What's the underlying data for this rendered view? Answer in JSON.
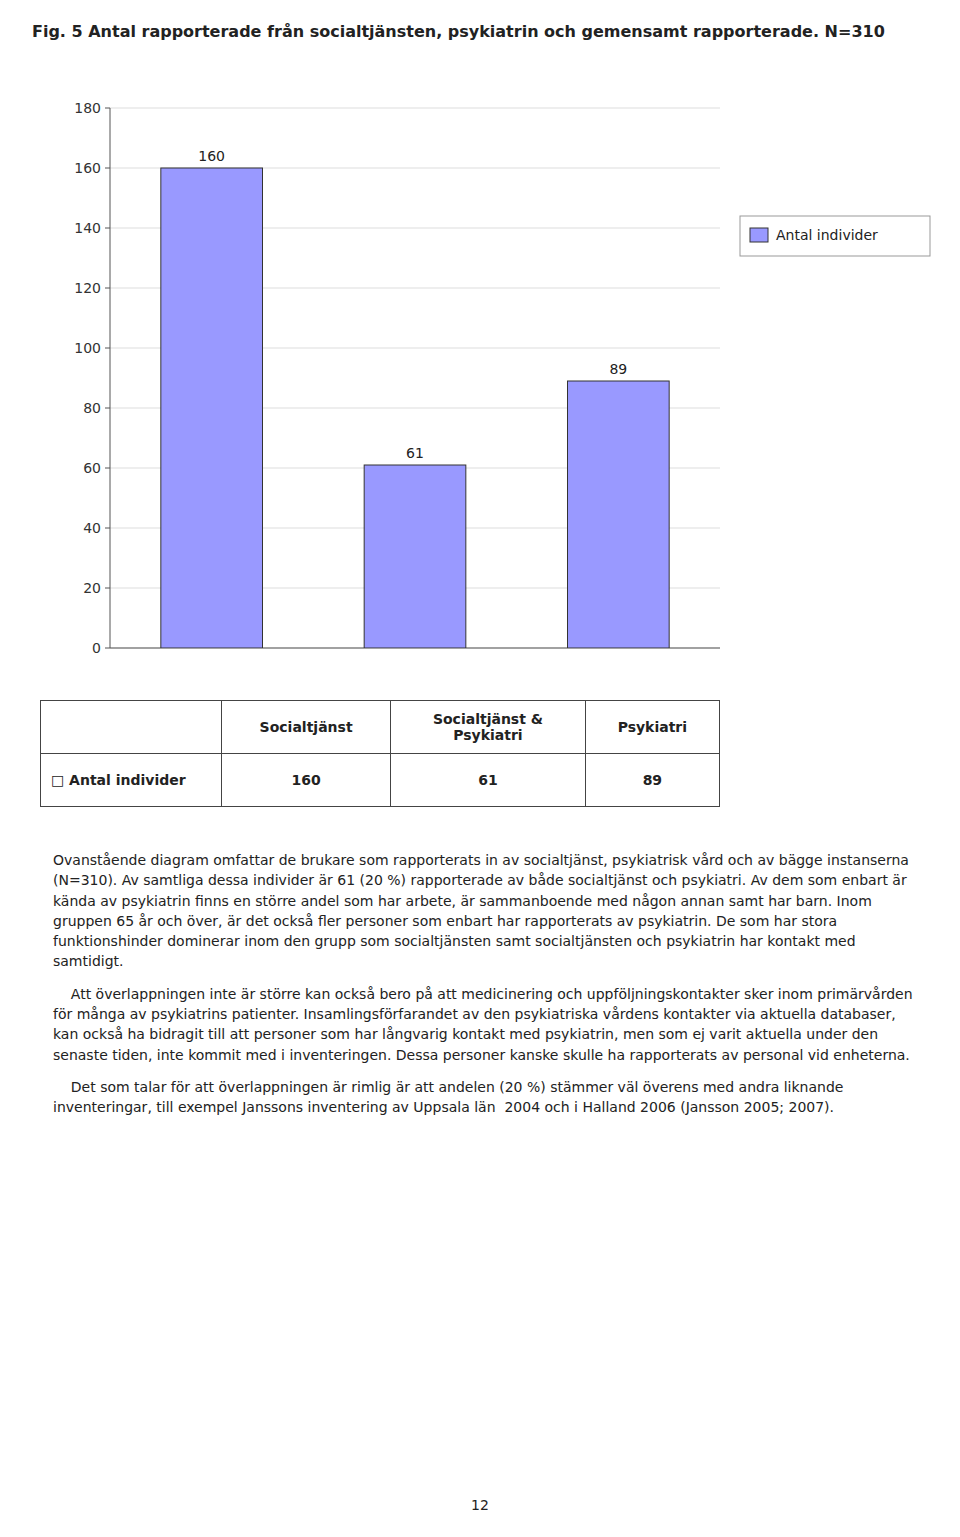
{
  "chart_data": {
    "type": "bar",
    "title": "Fig. 5  Antal rapporterade från socialtjänsten, psykiatrin och gemensamt rapporterade. N=310",
    "categories": [
      "Socialtjänst",
      "Socialtjänst &\nPsykiatri",
      "Psykiatri"
    ],
    "series": [
      {
        "name": "Antal individer",
        "color": "#9999ff",
        "values": [
          160,
          61,
          89
        ]
      }
    ],
    "ylim": [
      0,
      180
    ],
    "yticks": [
      0,
      20,
      40,
      60,
      80,
      100,
      120,
      140,
      160,
      180
    ],
    "grid": true,
    "legend": "right",
    "data_labels": true,
    "tick_labels": "y"
  },
  "table": {
    "row_label": "□ Antal individer"
  },
  "body_paragraphs": [
    "Ovanstående diagram omfattar de brukare som rapporterats in av socialtjänst, psykiatrisk vård och av bägge instanserna (N=310). Av samtliga dessa individer är 61 (20 %) rapporterade av både socialtjänst och psykiatri. Av dem som enbart är kända av psykiatrin finns en större andel som har arbete, är sammanboende med någon annan samt har barn. Inom gruppen 65 år och över, är det också fler personer som enbart har rapporterats av psykiatrin. De som har stora funktionshinder dominerar inom den grupp som socialtjänsten samt socialtjänsten och psykiatrin har kontakt med samtidigt.",
    "    Att överlappningen inte är större kan också bero på att medicinering och uppföljningskontakter sker inom primärvården för många av psykiatrins patienter. Insamlingsförfarandet av den psykiatriska vårdens kontakter via aktuella databaser, kan också ha bidragit till att personer som har långvarig kontakt med psykiatrin, men som ej varit aktuella under den senaste tiden, inte kommit med i inventeringen. Dessa personer kanske skulle ha rapporterats av personal vid enheterna.",
    "    Det som talar för att överlappningen är rimlig är att andelen (20 %) stämmer väl överens med andra liknande inventeringar, till exempel Janssons inventering av Uppsala län  2004 och i Halland 2006 (Jansson 2005; 2007)."
  ],
  "page_number": "12"
}
